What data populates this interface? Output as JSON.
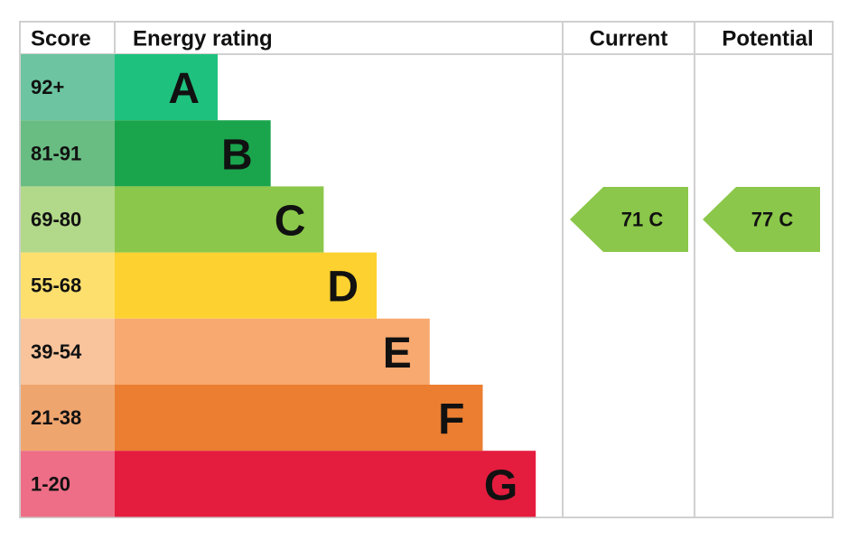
{
  "header": {
    "score": "Score",
    "rating": "Energy rating",
    "current": "Current",
    "potential": "Potential"
  },
  "bands": [
    {
      "score": "92+",
      "letter": "A",
      "color": "#1fc17f",
      "score_color": "#6cc5a0"
    },
    {
      "score": "81-91",
      "letter": "B",
      "color": "#1aa54d",
      "score_color": "#69bd82"
    },
    {
      "score": "69-80",
      "letter": "C",
      "color": "#8bc74a",
      "score_color": "#b2d88a"
    },
    {
      "score": "55-68",
      "letter": "D",
      "color": "#fdd12f",
      "score_color": "#fddf6e"
    },
    {
      "score": "39-54",
      "letter": "E",
      "color": "#f7a96f",
      "score_color": "#f9c49c"
    },
    {
      "score": "21-38",
      "letter": "F",
      "color": "#eb7e31",
      "score_color": "#efa56e"
    },
    {
      "score": "1-20",
      "letter": "G",
      "color": "#e41c3e",
      "score_color": "#ed6e86"
    }
  ],
  "current": {
    "label": "71 C",
    "color": "#8bc74a"
  },
  "potential": {
    "label": "77 C",
    "color": "#8bc74a"
  }
}
